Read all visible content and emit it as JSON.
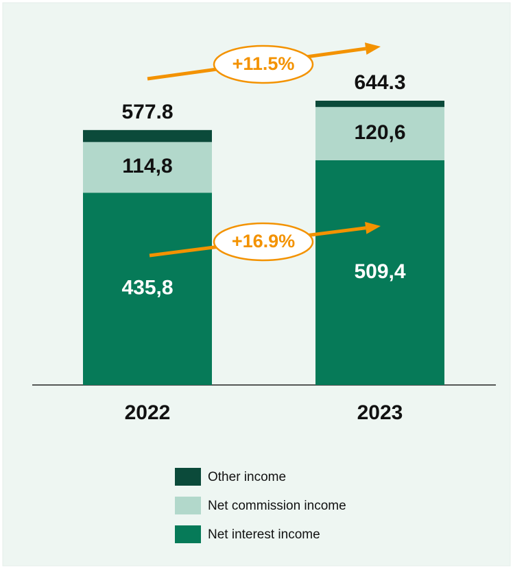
{
  "chart_data": {
    "type": "stacked_bar",
    "categories": [
      "2022",
      "2023"
    ],
    "series": [
      {
        "name": "Net interest income",
        "color": "#067a58",
        "values": [
          435.8,
          509.4
        ],
        "value_labels": [
          "435,8",
          "509,4"
        ],
        "label_color": "#ffffff"
      },
      {
        "name": "Net commission income",
        "color": "#b2d8cb",
        "values": [
          114.8,
          120.6
        ],
        "value_labels": [
          "114,8",
          "120,6"
        ],
        "label_color": "#111111"
      },
      {
        "name": "Other income",
        "color": "#0b4a3a",
        "values": [
          27.2,
          14.3
        ]
      }
    ],
    "totals": [
      577.8,
      644.3
    ],
    "annotations": [
      "+11.5%",
      "+16.9%"
    ],
    "annotation_color": "#f39200"
  }
}
